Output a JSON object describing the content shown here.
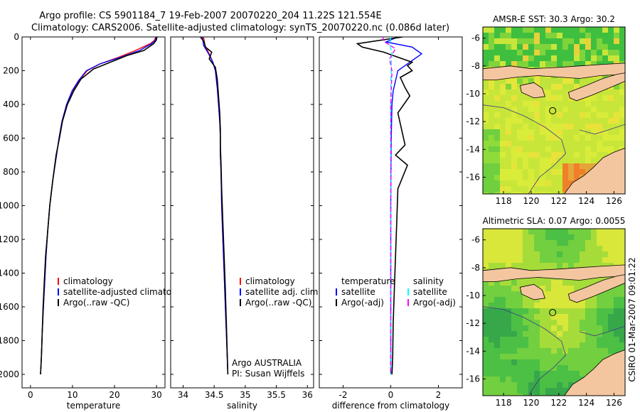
{
  "header": {
    "title_line1": "Argo profile: CS 5901184_7 19-Feb-2007 20070220_204 11.22S 121.554E",
    "title_line2": "Climatology: CARS2006. Satellite-adjusted climatology: synTS_20070220.nc (0.086d later)"
  },
  "side_label": "CSIRO 01-Mar-2007 09:01:22",
  "chart_data": [
    {
      "type": "line",
      "xlabel": "temperature",
      "ylabel": "",
      "xlim": [
        -2,
        32
      ],
      "ylim": [
        2080,
        0
      ],
      "xticks": [
        0,
        10,
        20,
        30
      ],
      "yticks": [
        0,
        200,
        400,
        600,
        800,
        1000,
        1200,
        1400,
        1600,
        1800,
        2000
      ],
      "legend_position": "lower-middle",
      "series": [
        {
          "name": "climatology",
          "color": "#ff0000",
          "x": [
            29.8,
            29.5,
            28.5,
            25,
            21,
            16.5,
            13.5,
            11.5,
            10,
            8.6,
            7.5,
            6.8,
            6.2,
            5.3,
            4.6,
            4.1,
            3.7,
            3.4,
            3.1,
            2.8,
            2.6,
            2.4
          ],
          "y": [
            0,
            20,
            40,
            80,
            120,
            160,
            200,
            260,
            320,
            400,
            500,
            600,
            700,
            850,
            1000,
            1150,
            1300,
            1450,
            1600,
            1750,
            1900,
            2000
          ]
        },
        {
          "name": "satellite-adjusted climatology",
          "color": "#0000ff",
          "x": [
            29.9,
            29.7,
            28.8,
            26,
            21.5,
            16.5,
            13.3,
            11.4,
            9.9,
            8.6,
            7.5,
            6.8,
            6.2,
            5.3,
            4.6,
            4.1,
            3.7,
            3.4,
            3.1,
            2.8,
            2.6,
            2.4
          ],
          "y": [
            0,
            20,
            40,
            80,
            120,
            160,
            200,
            260,
            320,
            400,
            500,
            600,
            700,
            850,
            1000,
            1150,
            1300,
            1450,
            1600,
            1750,
            1900,
            2000
          ]
        },
        {
          "name": "Argo(..raw -QC)",
          "color": "#000000",
          "x": [
            30.1,
            29.9,
            29.3,
            27,
            23,
            19,
            15,
            12,
            10.3,
            8.8,
            7.6,
            6.9,
            6.1,
            5.3,
            4.6,
            4.1,
            3.6,
            3.3,
            3.0,
            2.8,
            2.6,
            2.4
          ],
          "y": [
            0,
            20,
            40,
            80,
            110,
            150,
            190,
            250,
            320,
            400,
            500,
            600,
            700,
            850,
            1000,
            1150,
            1300,
            1450,
            1600,
            1750,
            1900,
            2000
          ]
        }
      ]
    },
    {
      "type": "line",
      "xlabel": "salinity",
      "ylabel": "",
      "xlim": [
        33.8,
        36.1
      ],
      "ylim": [
        2080,
        0
      ],
      "xticks": [
        34,
        34.5,
        35,
        35.5,
        36
      ],
      "legend_position": "lower-middle",
      "annotation": [
        "Argo AUSTRALIA",
        "PI: Susan Wijffels"
      ],
      "series": [
        {
          "name": "climatology",
          "color": "#ff0000",
          "x": [
            34.33,
            34.35,
            34.42,
            34.48,
            34.52,
            34.55,
            34.57,
            34.59,
            34.6,
            34.6,
            34.61,
            34.62,
            34.64,
            34.66,
            34.68,
            34.7,
            34.72
          ],
          "y": [
            0,
            50,
            100,
            150,
            200,
            300,
            400,
            500,
            600,
            700,
            800,
            1000,
            1200,
            1400,
            1600,
            1800,
            2000
          ]
        },
        {
          "name": "satellite adj. clim.",
          "color": "#0000ff",
          "x": [
            34.31,
            34.33,
            34.41,
            34.48,
            34.52,
            34.55,
            34.57,
            34.59,
            34.6,
            34.6,
            34.61,
            34.62,
            34.64,
            34.66,
            34.68,
            34.7,
            34.72
          ],
          "y": [
            0,
            50,
            100,
            150,
            200,
            300,
            400,
            500,
            600,
            700,
            800,
            1000,
            1200,
            1400,
            1600,
            1800,
            2000
          ]
        },
        {
          "name": "Argo(..raw -QC)",
          "color": "#000000",
          "x": [
            34.28,
            34.34,
            34.36,
            34.46,
            34.42,
            34.52,
            34.55,
            34.57,
            34.59,
            34.6,
            34.6,
            34.61,
            34.62,
            34.64,
            34.66,
            34.68,
            34.7,
            34.72
          ],
          "y": [
            0,
            30,
            60,
            90,
            130,
            180,
            250,
            350,
            450,
            550,
            650,
            750,
            900,
            1100,
            1300,
            1500,
            1750,
            2000
          ]
        }
      ]
    },
    {
      "type": "line",
      "xlabel": "difference from climatology",
      "ylabel": "",
      "xlim": [
        -3,
        3
      ],
      "ylim": [
        2080,
        0
      ],
      "xticks": [
        -2,
        0,
        2
      ],
      "legend_position": "lower-middle",
      "legend_headers": [
        "temperature",
        "salinity"
      ],
      "series": [
        {
          "name": "satellite",
          "group": "temperature",
          "color": "#0000ff",
          "x": [
            0.3,
            -0.2,
            0.9,
            1.3,
            0.8,
            0.3,
            0.2,
            0.1,
            0.05,
            0.02,
            0.01,
            0.0,
            0.0,
            0.0,
            0.0
          ],
          "y": [
            0,
            30,
            60,
            100,
            150,
            200,
            260,
            320,
            400,
            600,
            800,
            1000,
            1400,
            1800,
            2000
          ]
        },
        {
          "name": "Argo(-adj)",
          "group": "temperature",
          "color": "#000000",
          "x": [
            0.5,
            -1.4,
            -1.2,
            -0.3,
            0.3,
            0.9,
            0.7,
            0.9,
            0.4,
            0.6,
            0.8,
            0.3,
            0.6,
            0.2,
            0.7,
            0.3,
            0.25,
            0.2,
            0.15,
            0.1,
            0.08,
            0.05
          ],
          "y": [
            0,
            40,
            60,
            90,
            120,
            150,
            170,
            200,
            240,
            300,
            350,
            450,
            640,
            700,
            760,
            900,
            1100,
            1300,
            1500,
            1700,
            1900,
            2000
          ]
        },
        {
          "name": "satellite",
          "group": "salinity",
          "color": "#00ffff",
          "x": [
            0.0,
            -0.03,
            0.05,
            0.02,
            0.0,
            0.0,
            0.0,
            0.0,
            0.0
          ],
          "y": [
            0,
            50,
            100,
            150,
            300,
            600,
            1000,
            1500,
            2000
          ]
        },
        {
          "name": "Argo(-adj)",
          "group": "salinity",
          "color": "#ff00ff",
          "x": [
            -0.35,
            -0.25,
            0.2,
            -0.05,
            0.05,
            0.0,
            0.0,
            0.0,
            0.0
          ],
          "y": [
            0,
            30,
            70,
            130,
            200,
            400,
            800,
            1200,
            2000
          ]
        }
      ]
    },
    {
      "type": "heatmap",
      "title": "AMSR-E SST: 30.3 Argo: 30.2",
      "xlim": [
        116.5,
        126.8
      ],
      "ylim": [
        -17.2,
        -5.2
      ],
      "xticks": [
        118,
        120,
        122,
        124,
        126
      ],
      "yticks": [
        -6,
        -8,
        -10,
        -12,
        -14,
        -16
      ],
      "marker": {
        "lon": 121.554,
        "lat": -11.22
      }
    },
    {
      "type": "heatmap",
      "title": "Altimetric SLA: 0.07 Argo: 0.0055",
      "xlim": [
        116.5,
        126.8
      ],
      "ylim": [
        -17.2,
        -5.2
      ],
      "xticks": [
        118,
        120,
        122,
        124,
        126
      ],
      "yticks": [
        -6,
        -8,
        -10,
        -12,
        -14,
        -16
      ],
      "marker": {
        "lon": 121.554,
        "lat": -11.22
      }
    }
  ]
}
